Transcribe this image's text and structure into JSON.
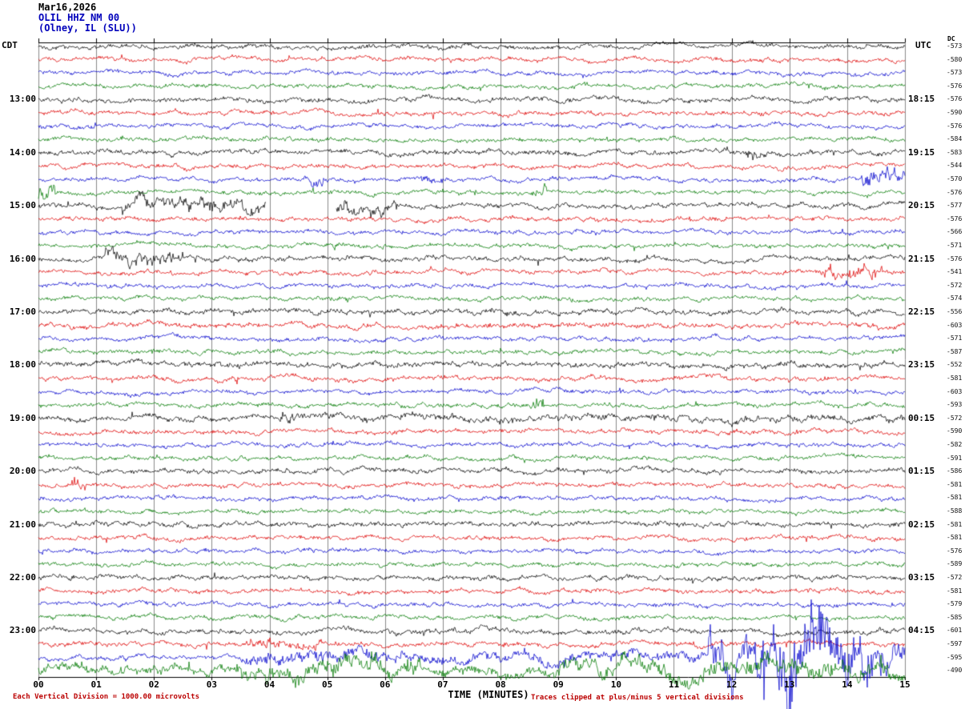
{
  "header": {
    "date": "Mar16,2026",
    "station": "OLIL HHZ NM 00",
    "location": "(Olney, IL (SLU))"
  },
  "axes": {
    "left_tz": "CDT",
    "right_tz": "UTC",
    "dc_header": "DC",
    "x_title": "TIME (MINUTES)",
    "x_ticks": [
      "00",
      "01",
      "02",
      "03",
      "04",
      "05",
      "06",
      "07",
      "08",
      "09",
      "10",
      "11",
      "12",
      "13",
      "14",
      "15"
    ],
    "x_range": [
      0,
      15
    ]
  },
  "footer": {
    "left_note": "Each Vertical Division = 1000.00 microvolts",
    "right_note": "Traces clipped at plus/minus 5 vertical divisions"
  },
  "colors": {
    "grid": "#8a8a8a",
    "axis": "#000000",
    "note": "#bb0000"
  },
  "chart_data": {
    "type": "line",
    "kind": "helicorder-seismogram",
    "title": "OLIL HHZ NM 00 (Olney, IL (SLU)) Mar16,2026",
    "xlabel": "TIME (MINUTES)",
    "minutes_per_row": 15,
    "clip_divisions": 5,
    "vertical_division_microvolts": 1000.0,
    "trace_colors": [
      "#000000",
      "#dd0000",
      "#0000cc",
      "#007a00"
    ],
    "rows": [
      {
        "color": 0,
        "dc": -573,
        "amp": 2.3
      },
      {
        "color": 1,
        "dc": -580,
        "amp": 2.1
      },
      {
        "color": 2,
        "dc": -573,
        "amp": 2.1
      },
      {
        "color": 3,
        "dc": -576,
        "amp": 2.1
      },
      {
        "color": 0,
        "dc": -576,
        "amp": 2.4,
        "cdt": "13:00",
        "utc": "18:15"
      },
      {
        "color": 1,
        "dc": -590,
        "amp": 2.2
      },
      {
        "color": 2,
        "dc": -576,
        "amp": 2.1
      },
      {
        "color": 3,
        "dc": -584,
        "amp": 2.1
      },
      {
        "color": 0,
        "dc": -583,
        "amp": 2.4,
        "cdt": "14:00",
        "utc": "19:15",
        "events": [
          [
            12.25,
            12.6,
            3
          ]
        ]
      },
      {
        "color": 1,
        "dc": -544,
        "amp": 2.2
      },
      {
        "color": 2,
        "dc": -570,
        "amp": 2.1,
        "events": [
          [
            4.6,
            5.05,
            3
          ],
          [
            6.6,
            7.0,
            2
          ],
          [
            14.25,
            15,
            7
          ]
        ]
      },
      {
        "color": 3,
        "dc": -576,
        "amp": 2.1,
        "events": [
          [
            0,
            0.3,
            6
          ],
          [
            8.55,
            8.8,
            5
          ]
        ]
      },
      {
        "color": 0,
        "dc": -577,
        "amp": 2.4,
        "cdt": "15:00",
        "utc": "20:15",
        "events": [
          [
            1.45,
            3.95,
            4.5
          ],
          [
            5.15,
            6.25,
            4.5
          ]
        ],
        "gaps": [
          [
            3.95,
            5.15
          ]
        ]
      },
      {
        "color": 1,
        "dc": -576,
        "amp": 2.2
      },
      {
        "color": 2,
        "dc": -566,
        "amp": 2.1
      },
      {
        "color": 3,
        "dc": -571,
        "amp": 2.1
      },
      {
        "color": 0,
        "dc": -576,
        "amp": 2.4,
        "cdt": "16:00",
        "utc": "21:15",
        "events": [
          [
            1.15,
            2.45,
            4
          ]
        ]
      },
      {
        "color": 1,
        "dc": -541,
        "amp": 2.2,
        "events": [
          [
            13.55,
            14.6,
            5
          ]
        ]
      },
      {
        "color": 2,
        "dc": -572,
        "amp": 2.1
      },
      {
        "color": 3,
        "dc": -574,
        "amp": 2.1
      },
      {
        "color": 0,
        "dc": -556,
        "amp": 2.6,
        "cdt": "17:00",
        "utc": "22:15"
      },
      {
        "color": 1,
        "dc": -603,
        "amp": 2.6
      },
      {
        "color": 2,
        "dc": -571,
        "amp": 2.1
      },
      {
        "color": 3,
        "dc": -587,
        "amp": 2.2
      },
      {
        "color": 0,
        "dc": -552,
        "amp": 2.7,
        "cdt": "18:00",
        "utc": "23:15"
      },
      {
        "color": 1,
        "dc": -581,
        "amp": 2.4
      },
      {
        "color": 2,
        "dc": -603,
        "amp": 2.1
      },
      {
        "color": 3,
        "dc": -593,
        "amp": 2.2,
        "events": [
          [
            8.5,
            8.75,
            6
          ]
        ]
      },
      {
        "color": 0,
        "dc": -572,
        "amp": 2.5,
        "cdt": "19:00",
        "utc": "00:15",
        "events": [
          [
            4.15,
            4.5,
            5
          ],
          [
            4.5,
            15,
            1
          ]
        ]
      },
      {
        "color": 1,
        "dc": -590,
        "amp": 2.2
      },
      {
        "color": 2,
        "dc": -582,
        "amp": 2.1
      },
      {
        "color": 3,
        "dc": -591,
        "amp": 2.1
      },
      {
        "color": 0,
        "dc": -586,
        "amp": 2.4,
        "cdt": "20:00",
        "utc": "01:15"
      },
      {
        "color": 1,
        "dc": -581,
        "amp": 2.2,
        "events": [
          [
            0.5,
            0.75,
            4
          ]
        ]
      },
      {
        "color": 2,
        "dc": -581,
        "amp": 2.1
      },
      {
        "color": 3,
        "dc": -588,
        "amp": 2.1
      },
      {
        "color": 0,
        "dc": -581,
        "amp": 2.4,
        "cdt": "21:00",
        "utc": "02:15"
      },
      {
        "color": 1,
        "dc": -581,
        "amp": 2.2
      },
      {
        "color": 2,
        "dc": -576,
        "amp": 2.1
      },
      {
        "color": 3,
        "dc": -589,
        "amp": 2.1
      },
      {
        "color": 0,
        "dc": -572,
        "amp": 2.4,
        "cdt": "22:00",
        "utc": "03:15"
      },
      {
        "color": 1,
        "dc": -581,
        "amp": 2.2
      },
      {
        "color": 2,
        "dc": -579,
        "amp": 2.1
      },
      {
        "color": 3,
        "dc": -585,
        "amp": 2.1
      },
      {
        "color": 0,
        "dc": -601,
        "amp": 2.6,
        "cdt": "23:00",
        "utc": "04:15"
      },
      {
        "color": 1,
        "dc": -597,
        "amp": 2.3,
        "events": [
          [
            3.6,
            4.9,
            2.5
          ]
        ]
      },
      {
        "color": 2,
        "dc": -595,
        "amp": 2.3,
        "events": [
          [
            3.5,
            6.2,
            4
          ],
          [
            6.2,
            11.5,
            3
          ],
          [
            11.6,
            12.5,
            18
          ],
          [
            12.5,
            13.7,
            40
          ],
          [
            13.7,
            14.6,
            24
          ],
          [
            14.6,
            15,
            12
          ]
        ]
      },
      {
        "color": 3,
        "dc": -490,
        "amp": 5,
        "events": [
          [
            3.4,
            6.6,
            4
          ],
          [
            9,
            12,
            3
          ],
          [
            12,
            15,
            4
          ]
        ]
      }
    ]
  }
}
